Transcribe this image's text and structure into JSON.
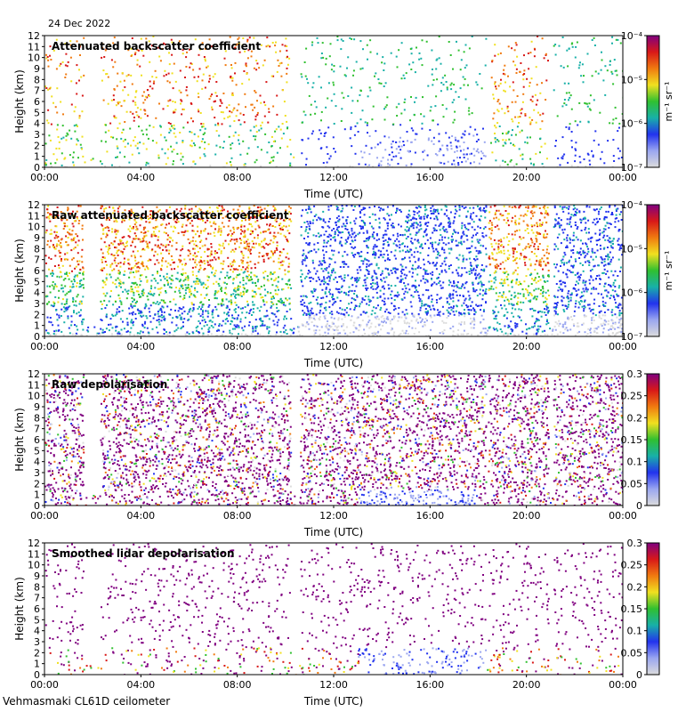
{
  "header": {
    "date": "24 Dec 2022"
  },
  "footer": {
    "site": "Vehmasmaki CL61D ceilometer"
  },
  "colors": {
    "purple": "#800080",
    "red": "#d81818",
    "orange": "#f07a10",
    "yellow": "#f0e020",
    "green": "#30c030",
    "teal": "#18b0a8",
    "blue": "#2233ee",
    "lightblue": "#9aa6f0",
    "grey": "#dcdcdc"
  },
  "chart_data": [
    {
      "type": "heatmap",
      "title": "Attenuated backscatter coefficient",
      "xlabel": "Time (UTC)",
      "ylabel": "Height (km)",
      "xticks": [
        "00:00",
        "04:00",
        "08:00",
        "12:00",
        "16:00",
        "20:00",
        "00:00"
      ],
      "yticks": [
        "0",
        "1",
        "2",
        "3",
        "4",
        "5",
        "6",
        "7",
        "8",
        "9",
        "10",
        "11",
        "12"
      ],
      "xlim_hours": [
        0,
        24
      ],
      "ylim_km": [
        0,
        12
      ],
      "colorbar": {
        "scale": "log",
        "ticks": [
          "10⁻⁷",
          "10⁻⁶",
          "10⁻⁵",
          "10⁻⁴"
        ],
        "label": "m⁻¹ sr⁻¹",
        "range": [
          1e-07,
          0.0001
        ]
      }
    },
    {
      "type": "heatmap",
      "title": "Raw attenuated backscatter coefficient",
      "xlabel": "Time (UTC)",
      "ylabel": "Height (km)",
      "xticks": [
        "00:00",
        "04:00",
        "08:00",
        "12:00",
        "16:00",
        "20:00",
        "00:00"
      ],
      "yticks": [
        "0",
        "1",
        "2",
        "3",
        "4",
        "5",
        "6",
        "7",
        "8",
        "9",
        "10",
        "11",
        "12"
      ],
      "xlim_hours": [
        0,
        24
      ],
      "ylim_km": [
        0,
        12
      ],
      "colorbar": {
        "scale": "log",
        "ticks": [
          "10⁻⁷",
          "10⁻⁶",
          "10⁻⁵",
          "10⁻⁴"
        ],
        "label": "m⁻¹ sr⁻¹",
        "range": [
          1e-07,
          0.0001
        ]
      }
    },
    {
      "type": "heatmap",
      "title": "Raw depolarisation",
      "xlabel": "Time (UTC)",
      "ylabel": "Height (km)",
      "xticks": [
        "00:00",
        "04:00",
        "08:00",
        "12:00",
        "16:00",
        "20:00",
        "00:00"
      ],
      "yticks": [
        "0",
        "1",
        "2",
        "3",
        "4",
        "5",
        "6",
        "7",
        "8",
        "9",
        "10",
        "11",
        "12"
      ],
      "xlim_hours": [
        0,
        24
      ],
      "ylim_km": [
        0,
        12
      ],
      "colorbar": {
        "scale": "linear",
        "ticks": [
          "0",
          "0.05",
          "0.1",
          "0.15",
          "0.2",
          "0.25",
          "0.3"
        ],
        "label": "",
        "range": [
          0,
          0.3
        ]
      }
    },
    {
      "type": "heatmap",
      "title": "Smoothed lidar depolarisation",
      "xlabel": "Time (UTC)",
      "ylabel": "Height (km)",
      "xticks": [
        "00:00",
        "04:00",
        "08:00",
        "12:00",
        "16:00",
        "20:00",
        "00:00"
      ],
      "yticks": [
        "0",
        "1",
        "2",
        "3",
        "4",
        "5",
        "6",
        "7",
        "8",
        "9",
        "10",
        "11",
        "12"
      ],
      "xlim_hours": [
        0,
        24
      ],
      "ylim_km": [
        0,
        12
      ],
      "colorbar": {
        "scale": "linear",
        "ticks": [
          "0",
          "0.05",
          "0.1",
          "0.15",
          "0.2",
          "0.25",
          "0.3"
        ],
        "label": "",
        "range": [
          0,
          0.3
        ]
      }
    }
  ]
}
